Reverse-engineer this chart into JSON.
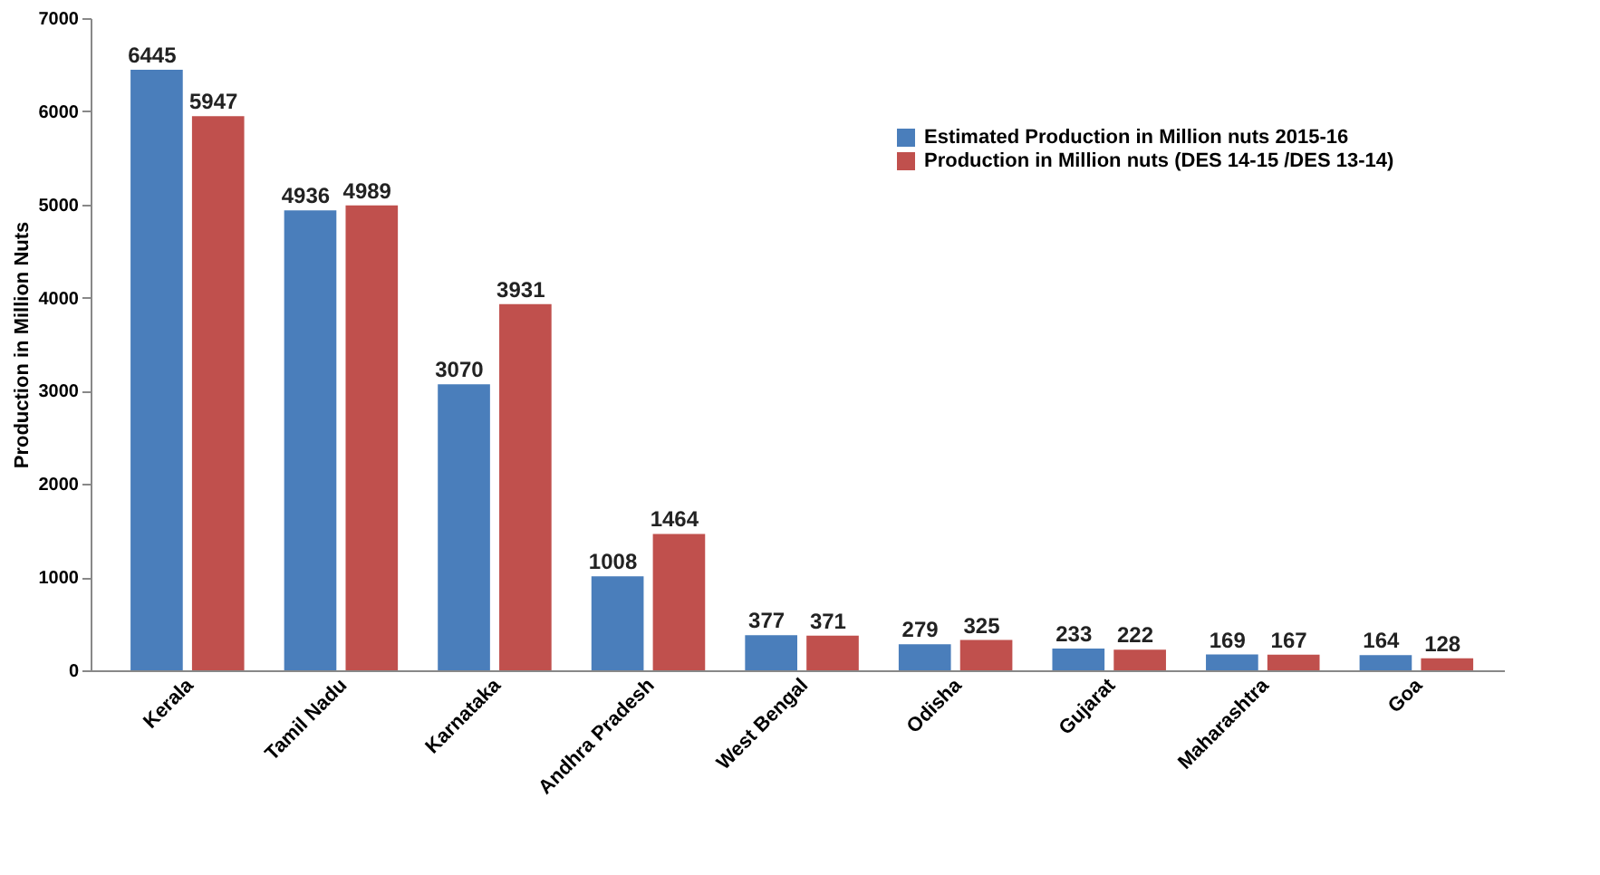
{
  "chart_data": {
    "type": "bar",
    "ylabel": "Production in Million Nuts",
    "categories": [
      "Kerala",
      "Tamil Nadu",
      "Karnataka",
      "Andhra Pradesh",
      "West Bengal",
      "Odisha",
      "Gujarat",
      "Maharashtra",
      "Goa"
    ],
    "series": [
      {
        "name": "Estimated Production  in Million nuts 2015-16",
        "color": "#4a7ebb",
        "values": [
          6445,
          4936,
          3070,
          1008,
          377,
          279,
          233,
          169,
          164
        ]
      },
      {
        "name": "Production in Million nuts (DES 14-15 /DES 13-14)",
        "color": "#c0504d",
        "values": [
          5947,
          4989,
          3931,
          1464,
          371,
          325,
          222,
          167,
          128
        ]
      }
    ],
    "ylim": [
      0,
      7000
    ],
    "yticks": [
      0,
      1000,
      2000,
      3000,
      4000,
      5000,
      6000,
      7000
    ],
    "data_labels": true,
    "grid": false,
    "legend": "top right"
  }
}
